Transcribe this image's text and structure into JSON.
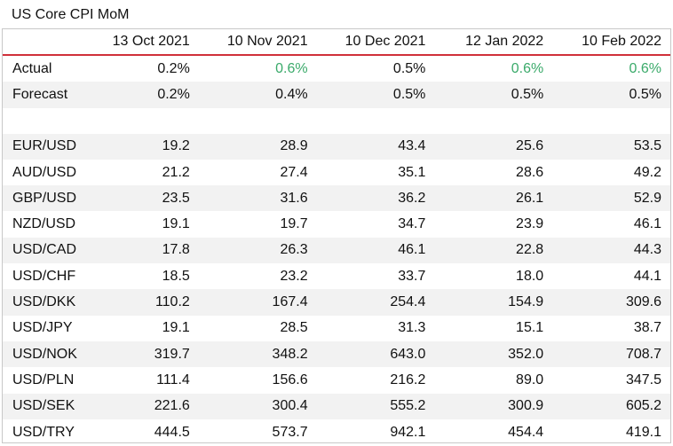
{
  "title": "US Core CPI MoM",
  "columns": [
    "13 Oct 2021",
    "10 Nov 2021",
    "10 Dec 2021",
    "12 Jan 2022",
    "10 Feb 2022"
  ],
  "accent_color": "#d0303a",
  "highlight_color": "#3aaa6a",
  "rows": [
    {
      "label": "Actual",
      "values": [
        "0.2%",
        "0.6%",
        "0.5%",
        "0.6%",
        "0.6%"
      ],
      "highlight": [
        false,
        true,
        false,
        true,
        true
      ]
    },
    {
      "label": "Forecast",
      "values": [
        "0.2%",
        "0.4%",
        "0.5%",
        "0.5%",
        "0.5%"
      ],
      "highlight": [
        false,
        false,
        false,
        false,
        false
      ]
    },
    {
      "label": "",
      "values": [
        "",
        "",
        "",
        "",
        ""
      ],
      "highlight": [
        false,
        false,
        false,
        false,
        false
      ]
    },
    {
      "label": "EUR/USD",
      "values": [
        "19.2",
        "28.9",
        "43.4",
        "25.6",
        "53.5"
      ],
      "highlight": [
        false,
        false,
        false,
        false,
        false
      ]
    },
    {
      "label": "AUD/USD",
      "values": [
        "21.2",
        "27.4",
        "35.1",
        "28.6",
        "49.2"
      ],
      "highlight": [
        false,
        false,
        false,
        false,
        false
      ]
    },
    {
      "label": "GBP/USD",
      "values": [
        "23.5",
        "31.6",
        "36.2",
        "26.1",
        "52.9"
      ],
      "highlight": [
        false,
        false,
        false,
        false,
        false
      ]
    },
    {
      "label": "NZD/USD",
      "values": [
        "19.1",
        "19.7",
        "34.7",
        "23.9",
        "46.1"
      ],
      "highlight": [
        false,
        false,
        false,
        false,
        false
      ]
    },
    {
      "label": "USD/CAD",
      "values": [
        "17.8",
        "26.3",
        "46.1",
        "22.8",
        "44.3"
      ],
      "highlight": [
        false,
        false,
        false,
        false,
        false
      ]
    },
    {
      "label": "USD/CHF",
      "values": [
        "18.5",
        "23.2",
        "33.7",
        "18.0",
        "44.1"
      ],
      "highlight": [
        false,
        false,
        false,
        false,
        false
      ]
    },
    {
      "label": "USD/DKK",
      "values": [
        "110.2",
        "167.4",
        "254.4",
        "154.9",
        "309.6"
      ],
      "highlight": [
        false,
        false,
        false,
        false,
        false
      ]
    },
    {
      "label": "USD/JPY",
      "values": [
        "19.1",
        "28.5",
        "31.3",
        "15.1",
        "38.7"
      ],
      "highlight": [
        false,
        false,
        false,
        false,
        false
      ]
    },
    {
      "label": "USD/NOK",
      "values": [
        "319.7",
        "348.2",
        "643.0",
        "352.0",
        "708.7"
      ],
      "highlight": [
        false,
        false,
        false,
        false,
        false
      ]
    },
    {
      "label": "USD/PLN",
      "values": [
        "111.4",
        "156.6",
        "216.2",
        "89.0",
        "347.5"
      ],
      "highlight": [
        false,
        false,
        false,
        false,
        false
      ]
    },
    {
      "label": "USD/SEK",
      "values": [
        "221.6",
        "300.4",
        "555.2",
        "300.9",
        "605.2"
      ],
      "highlight": [
        false,
        false,
        false,
        false,
        false
      ]
    },
    {
      "label": "USD/TRY",
      "values": [
        "444.5",
        "573.7",
        "942.1",
        "454.4",
        "419.1"
      ],
      "highlight": [
        false,
        false,
        false,
        false,
        false
      ]
    }
  ]
}
